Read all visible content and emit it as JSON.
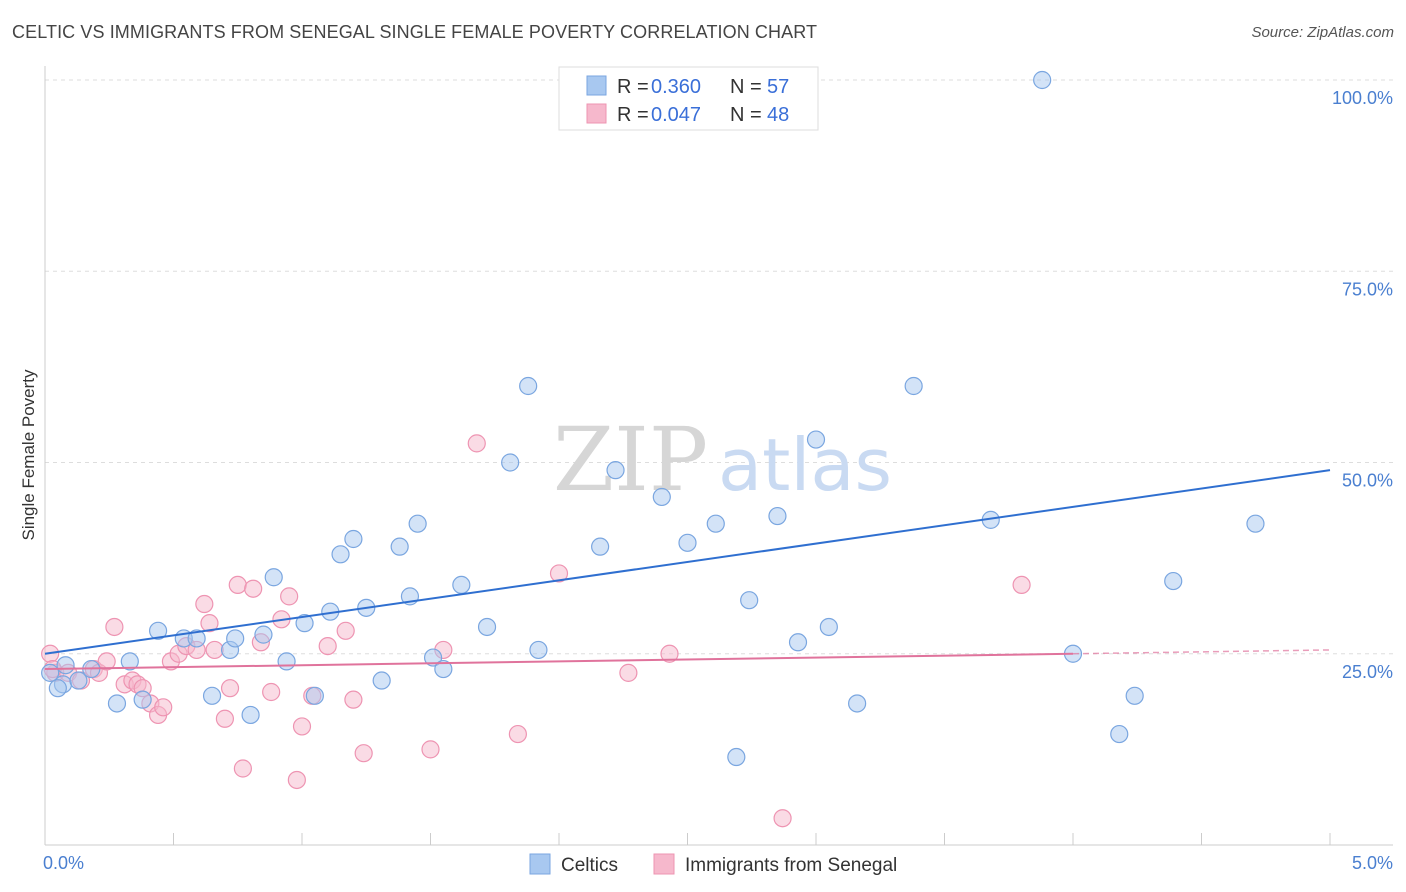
{
  "title": "CELTIC VS IMMIGRANTS FROM SENEGAL SINGLE FEMALE POVERTY CORRELATION CHART",
  "source": "Source: ZipAtlas.com",
  "watermark": {
    "zip": "ZIP",
    "atlas": "atlas"
  },
  "colors": {
    "celtic_fill": "#a8c8f0",
    "celtic_stroke": "#7aa6e0",
    "celtic_line": "#2f6fd0",
    "senegal_fill": "#f6b8cc",
    "senegal_stroke": "#ee94b2",
    "senegal_line": "#e0739c",
    "axis_text": "#4a7fd0",
    "grid": "#dddddd"
  },
  "legend": {
    "r_label": "R =",
    "n_label": "N =",
    "rows": [
      {
        "series": "Celtics",
        "r": "0.360",
        "n": "57"
      },
      {
        "series": "Immigrants from Senegal",
        "r": "0.047",
        "n": "48"
      }
    ]
  },
  "bottom_legend": [
    "Celtics",
    "Immigrants from Senegal"
  ],
  "chart_data": {
    "type": "scatter",
    "title": "CELTIC VS IMMIGRANTS FROM SENEGAL SINGLE FEMALE POVERTY CORRELATION CHART",
    "xlabel": "",
    "ylabel": "Single Female Poverty",
    "xlim": [
      0,
      5
    ],
    "ylim": [
      0,
      100
    ],
    "x_tick_labels": [
      "0.0%",
      "5.0%"
    ],
    "y_ticks": [
      25,
      50,
      75,
      100
    ],
    "y_tick_labels": [
      "25.0%",
      "50.0%",
      "75.0%",
      "100.0%"
    ],
    "grid": true,
    "legend_position": "top-center",
    "series": [
      {
        "name": "Celtics",
        "trend": {
          "x": [
            0,
            5
          ],
          "y": [
            25.0,
            49.0
          ]
        },
        "points": [
          [
            0.02,
            22.5
          ],
          [
            0.07,
            21.0
          ],
          [
            0.08,
            23.5
          ],
          [
            0.13,
            21.5
          ],
          [
            0.18,
            23.0
          ],
          [
            0.28,
            18.5
          ],
          [
            0.33,
            24.0
          ],
          [
            0.38,
            19.0
          ],
          [
            0.44,
            28.0
          ],
          [
            0.54,
            27.0
          ],
          [
            0.59,
            27.0
          ],
          [
            0.65,
            19.5
          ],
          [
            0.72,
            25.5
          ],
          [
            0.74,
            27.0
          ],
          [
            0.8,
            17.0
          ],
          [
            0.85,
            27.5
          ],
          [
            0.89,
            35.0
          ],
          [
            0.94,
            24.0
          ],
          [
            1.01,
            29.0
          ],
          [
            1.05,
            19.5
          ],
          [
            1.11,
            30.5
          ],
          [
            1.15,
            38.0
          ],
          [
            1.2,
            40.0
          ],
          [
            1.25,
            31.0
          ],
          [
            1.31,
            21.5
          ],
          [
            1.38,
            39.0
          ],
          [
            1.42,
            32.5
          ],
          [
            1.45,
            42.0
          ],
          [
            1.51,
            24.5
          ],
          [
            1.55,
            23.0
          ],
          [
            1.62,
            34.0
          ],
          [
            1.72,
            28.5
          ],
          [
            1.81,
            50.0
          ],
          [
            1.88,
            60.0
          ],
          [
            1.92,
            25.5
          ],
          [
            2.16,
            39.0
          ],
          [
            2.22,
            49.0
          ],
          [
            2.32,
            100.0
          ],
          [
            2.4,
            45.5
          ],
          [
            2.5,
            39.5
          ],
          [
            2.61,
            42.0
          ],
          [
            2.69,
            11.5
          ],
          [
            2.74,
            32.0
          ],
          [
            2.85,
            43.0
          ],
          [
            2.93,
            26.5
          ],
          [
            3.0,
            53.0
          ],
          [
            3.05,
            28.5
          ],
          [
            3.16,
            18.5
          ],
          [
            3.38,
            60.0
          ],
          [
            3.68,
            42.5
          ],
          [
            3.88,
            100.0
          ],
          [
            4.0,
            25.0
          ],
          [
            4.18,
            14.5
          ],
          [
            4.24,
            19.5
          ],
          [
            4.39,
            34.5
          ],
          [
            4.71,
            42.0
          ],
          [
            0.05,
            20.5
          ]
        ]
      },
      {
        "name": "Immigrants from Senegal",
        "trend": {
          "x": [
            0,
            4.0
          ],
          "y": [
            23.0,
            25.0
          ],
          "dashed_extension": {
            "x": [
              4.0,
              5.0
            ],
            "y": [
              25.0,
              25.5
            ]
          }
        },
        "points": [
          [
            0.02,
            25.0
          ],
          [
            0.04,
            22.5
          ],
          [
            0.09,
            22.5
          ],
          [
            0.14,
            21.5
          ],
          [
            0.19,
            23.0
          ],
          [
            0.21,
            22.5
          ],
          [
            0.24,
            24.0
          ],
          [
            0.27,
            28.5
          ],
          [
            0.31,
            21.0
          ],
          [
            0.34,
            21.5
          ],
          [
            0.36,
            21.0
          ],
          [
            0.38,
            20.5
          ],
          [
            0.41,
            18.5
          ],
          [
            0.44,
            17.0
          ],
          [
            0.46,
            18.0
          ],
          [
            0.49,
            24.0
          ],
          [
            0.52,
            25.0
          ],
          [
            0.55,
            26.0
          ],
          [
            0.59,
            25.5
          ],
          [
            0.62,
            31.5
          ],
          [
            0.64,
            29.0
          ],
          [
            0.66,
            25.5
          ],
          [
            0.7,
            16.5
          ],
          [
            0.72,
            20.5
          ],
          [
            0.75,
            34.0
          ],
          [
            0.77,
            10.0
          ],
          [
            0.81,
            33.5
          ],
          [
            0.84,
            26.5
          ],
          [
            0.88,
            20.0
          ],
          [
            0.92,
            29.5
          ],
          [
            0.95,
            32.5
          ],
          [
            0.98,
            8.5
          ],
          [
            1.0,
            15.5
          ],
          [
            1.04,
            19.5
          ],
          [
            1.1,
            26.0
          ],
          [
            1.17,
            28.0
          ],
          [
            1.2,
            19.0
          ],
          [
            1.24,
            12.0
          ],
          [
            1.5,
            12.5
          ],
          [
            1.55,
            25.5
          ],
          [
            1.68,
            52.5
          ],
          [
            1.84,
            14.5
          ],
          [
            2.0,
            35.5
          ],
          [
            2.27,
            22.5
          ],
          [
            2.43,
            25.0
          ],
          [
            2.87,
            3.5
          ],
          [
            3.8,
            34.0
          ],
          [
            0.03,
            23.0
          ]
        ]
      }
    ]
  }
}
